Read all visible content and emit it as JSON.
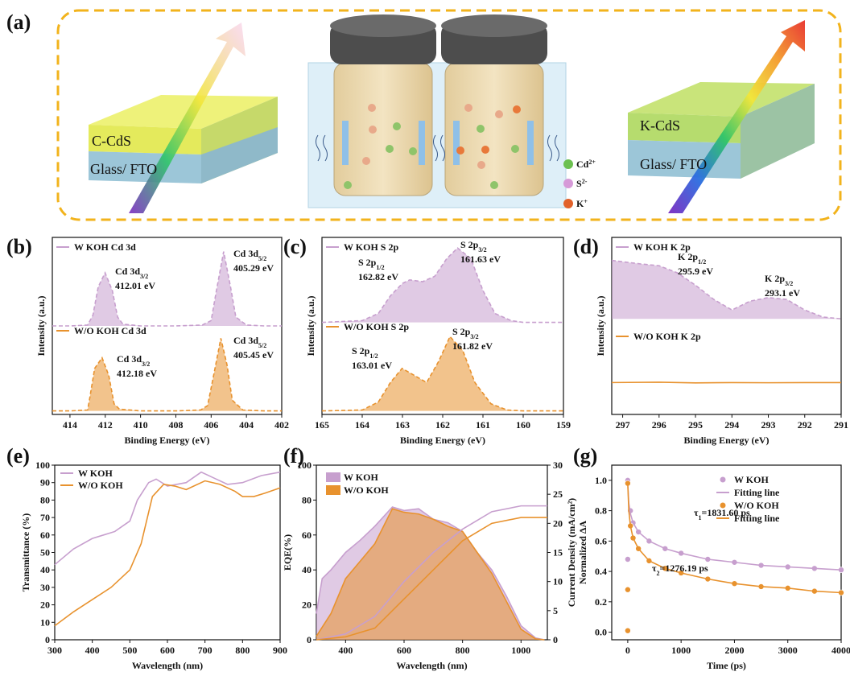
{
  "panel_a": {
    "label": "(a)",
    "left": {
      "top": "C-CdS",
      "bottom": "Glass/ FTO"
    },
    "right": {
      "top": "K-CdS",
      "bottom": "Glass/ FTO"
    },
    "ions": [
      {
        "symbol": "Cd",
        "charge": "2+"
      },
      {
        "symbol": "S",
        "charge": "2-"
      },
      {
        "symbol": "K",
        "charge": "+"
      }
    ]
  },
  "chart_data": [
    {
      "panel": "(b)",
      "type": "line",
      "xlabel": "Binding Energy (eV)",
      "ylabel": "Intensity (a.u.)",
      "xlim": [
        415,
        402
      ],
      "xticks": [
        414,
        412,
        410,
        408,
        406,
        404,
        402
      ],
      "ylim": [
        0,
        100
      ],
      "series": [
        {
          "name": "W KOH Cd 3d",
          "color": "#c79fce",
          "kind": "area",
          "x": [
            415,
            414,
            413,
            412.7,
            412.4,
            412.01,
            411.6,
            411.3,
            411,
            410,
            408,
            406.5,
            406,
            405.7,
            405.29,
            404.9,
            404.6,
            404,
            403,
            402
          ],
          "values": [
            50,
            50,
            50.5,
            56,
            72,
            80,
            70,
            55,
            51,
            50,
            50,
            50.5,
            53,
            70,
            92,
            72,
            55,
            50.5,
            50,
            50
          ]
        },
        {
          "name": "W/O KOH Cd 3d",
          "color": "#e8922e",
          "kind": "area",
          "x": [
            415,
            414,
            413,
            412.9,
            412.6,
            412.18,
            411.8,
            411.5,
            411.2,
            410,
            408,
            406.6,
            406.2,
            405.8,
            405.45,
            405.1,
            404.8,
            404.2,
            403,
            402
          ],
          "values": [
            2,
            2,
            2.5,
            8,
            26,
            32,
            22,
            6,
            3,
            2,
            2,
            2.5,
            5,
            25,
            43,
            28,
            8,
            2.5,
            2,
            2
          ]
        }
      ],
      "annotations": [
        {
          "text": "Cd 3d",
          "sub": "3/2",
          "line2": "412.01 eV"
        },
        {
          "text": "Cd 3d",
          "sub": "5/2",
          "line2": "405.29 eV"
        },
        {
          "text": "Cd 3d",
          "sub": "3/2",
          "line2": "412.18 eV"
        },
        {
          "text": "Cd 3d",
          "sub": "5/2",
          "line2": "405.45 eV"
        }
      ]
    },
    {
      "panel": "(c)",
      "type": "line",
      "xlabel": "Binding Energy (eV)",
      "ylabel": "Intensity (a.u.)",
      "xlim": [
        165,
        159
      ],
      "xticks": [
        165,
        164,
        163,
        162,
        161,
        160,
        159
      ],
      "ylim": [
        0,
        100
      ],
      "series": [
        {
          "name": "W KOH S 2p",
          "color": "#c79fce",
          "kind": "area",
          "x": [
            165,
            164,
            163.6,
            163.3,
            163,
            162.82,
            162.5,
            162.2,
            161.9,
            161.63,
            161.3,
            161,
            160.7,
            160.3,
            160,
            159
          ],
          "values": [
            52,
            53,
            57,
            67,
            74,
            76,
            75,
            78,
            88,
            94,
            88,
            70,
            57,
            53,
            52,
            52
          ]
        },
        {
          "name": "W/O KOH S 2p",
          "color": "#e8922e",
          "kind": "area",
          "x": [
            165,
            164,
            163.6,
            163.3,
            163.01,
            162.7,
            162.4,
            162.1,
            161.82,
            161.5,
            161.2,
            160.8,
            160.4,
            160,
            159
          ],
          "values": [
            2,
            2.5,
            7,
            18,
            26,
            22,
            18,
            30,
            44,
            36,
            18,
            6,
            2.5,
            2,
            2
          ]
        }
      ],
      "annotations": [
        {
          "text": "S 2p",
          "sub": "1/2",
          "line2": "162.82 eV"
        },
        {
          "text": "S 2p",
          "sub": "3/2",
          "line2": "161.63 eV"
        },
        {
          "text": "S 2p",
          "sub": "1/2",
          "line2": "163.01 eV"
        },
        {
          "text": "S 2p",
          "sub": "3/2",
          "line2": "161.82 eV"
        }
      ]
    },
    {
      "panel": "(d)",
      "type": "line",
      "xlabel": "Binding Energy (eV)",
      "ylabel": "Intensity (a.u.)",
      "xlim": [
        297.3,
        291
      ],
      "xticks": [
        297,
        296,
        295,
        294,
        293,
        292,
        291
      ],
      "ylim": [
        0,
        100
      ],
      "series": [
        {
          "name": "W KOH K 2p",
          "color": "#c79fce",
          "kind": "area",
          "x": [
            297.3,
            296.5,
            296,
            295.5,
            295,
            294.5,
            294,
            293.5,
            293,
            292.5,
            292,
            291.5,
            291
          ],
          "values": [
            87,
            85,
            84,
            80,
            73,
            65,
            59,
            64,
            66,
            65,
            59,
            55,
            54
          ]
        },
        {
          "name": "W/O KOH K 2p",
          "color": "#e8922e",
          "kind": "line",
          "x": [
            297.3,
            296,
            295,
            294,
            293,
            292,
            291
          ],
          "values": [
            18,
            18.2,
            17.8,
            18,
            17.9,
            18,
            18
          ]
        }
      ],
      "annotations": [
        {
          "text": "K 2p",
          "sub": "1/2",
          "line2": "295.9 eV"
        },
        {
          "text": "K 2p",
          "sub": "3/2",
          "line2": "293.1 eV"
        }
      ]
    },
    {
      "panel": "(e)",
      "type": "line",
      "xlabel": "Wavelength (nm)",
      "ylabel": "Transmittance (%)",
      "xlim": [
        300,
        900
      ],
      "xticks": [
        300,
        400,
        500,
        600,
        700,
        800,
        900
      ],
      "ylim": [
        0,
        100
      ],
      "yticks": [
        0,
        10,
        20,
        30,
        40,
        50,
        60,
        70,
        80,
        90,
        100
      ],
      "series": [
        {
          "name": "W KOH",
          "color": "#c79fce",
          "kind": "line",
          "x": [
            300,
            350,
            400,
            430,
            460,
            500,
            520,
            550,
            570,
            600,
            650,
            690,
            720,
            760,
            800,
            850,
            900
          ],
          "values": [
            43,
            52,
            58,
            60,
            62,
            68,
            80,
            90,
            92,
            88,
            90,
            96,
            93,
            89,
            90,
            94,
            96
          ]
        },
        {
          "name": "W/O KOH",
          "color": "#e8922e",
          "kind": "line",
          "x": [
            300,
            350,
            400,
            450,
            500,
            530,
            560,
            590,
            620,
            650,
            700,
            740,
            780,
            800,
            830,
            860,
            900
          ],
          "values": [
            8,
            16,
            23,
            30,
            40,
            55,
            82,
            89,
            88,
            86,
            91,
            89,
            85,
            82,
            82,
            84,
            87
          ]
        }
      ]
    },
    {
      "panel": "(f)",
      "type": "line",
      "xlabel": "Wavelength (nm)",
      "ylabel": "EQE(%)",
      "y2label": "Current Density (mA/cm²)",
      "xlim": [
        300,
        1090
      ],
      "xticks": [
        400,
        600,
        800,
        1000
      ],
      "ylim": [
        0,
        100
      ],
      "yticks": [
        0,
        20,
        40,
        60,
        80,
        100
      ],
      "y2lim": [
        0,
        30
      ],
      "y2ticks": [
        0,
        5,
        10,
        15,
        20,
        25,
        30
      ],
      "series": [
        {
          "name": "W KOH",
          "color": "#c79fce",
          "kind": "area",
          "x": [
            300,
            320,
            350,
            400,
            450,
            500,
            560,
            600,
            650,
            700,
            750,
            800,
            850,
            900,
            950,
            1000,
            1050,
            1080
          ],
          "values": [
            15,
            35,
            40,
            50,
            57,
            65,
            76,
            74,
            75,
            69,
            67,
            62,
            50,
            40,
            25,
            8,
            1,
            0
          ]
        },
        {
          "name": "W/O KOH",
          "color": "#e8922e",
          "kind": "area",
          "x": [
            300,
            350,
            400,
            450,
            500,
            560,
            600,
            650,
            700,
            750,
            800,
            850,
            900,
            950,
            1000,
            1050,
            1080
          ],
          "values": [
            2,
            15,
            35,
            45,
            55,
            75,
            73,
            72,
            69,
            65,
            62,
            50,
            38,
            22,
            6,
            0.5,
            0
          ]
        },
        {
          "name": "W KOH",
          "color": "#c79fce",
          "kind": "line",
          "axis": "y2",
          "x": [
            300,
            400,
            500,
            600,
            700,
            800,
            900,
            1000,
            1090
          ],
          "values": [
            0,
            1,
            4,
            10,
            15,
            19,
            22,
            23,
            23
          ]
        },
        {
          "name": "W/O KOH",
          "color": "#e8922e",
          "kind": "line",
          "axis": "y2",
          "x": [
            300,
            400,
            500,
            600,
            700,
            800,
            900,
            1000,
            1090
          ],
          "values": [
            0,
            0.5,
            2,
            7,
            12,
            17,
            20,
            21,
            21
          ]
        }
      ]
    },
    {
      "panel": "(g)",
      "type": "line",
      "xlabel": "Time (ps)",
      "ylabel": "Normalized ΔA",
      "xlim": [
        -300,
        4000
      ],
      "xticks": [
        0,
        1000,
        2000,
        3000,
        4000
      ],
      "ylim": [
        -0.05,
        1.1
      ],
      "yticks": [
        {
          "value": 0,
          "label": "0.0"
        },
        {
          "value": 0.2,
          "label": "0.2"
        },
        {
          "value": 0.4,
          "label": "0.4"
        },
        {
          "value": 0.6,
          "label": "0.6"
        },
        {
          "value": 0.8,
          "label": "0.8"
        },
        {
          "value": 1,
          "label": "1.0"
        }
      ],
      "series": [
        {
          "name": "W KOH",
          "color": "#c79fce",
          "kind": "scatter",
          "x": [
            0,
            0,
            50,
            100,
            200,
            400,
            700,
            1000,
            1500,
            2000,
            2500,
            3000,
            3500,
            4000
          ],
          "values": [
            1.0,
            0.48,
            0.8,
            0.72,
            0.66,
            0.6,
            0.55,
            0.52,
            0.48,
            0.46,
            0.44,
            0.43,
            0.42,
            0.41
          ]
        },
        {
          "name": "Fitting line",
          "color": "#c79fce",
          "kind": "line",
          "x": [
            0,
            20,
            50,
            100,
            200,
            400,
            700,
            1000,
            1500,
            2000,
            2500,
            3000,
            3500,
            4000
          ],
          "values": [
            0.98,
            0.85,
            0.78,
            0.72,
            0.66,
            0.6,
            0.55,
            0.52,
            0.48,
            0.46,
            0.44,
            0.43,
            0.42,
            0.41
          ]
        },
        {
          "name": "W/O KOH",
          "color": "#e8922e",
          "kind": "scatter",
          "x": [
            0,
            0,
            0,
            50,
            100,
            200,
            400,
            700,
            1000,
            1500,
            2000,
            2500,
            3000,
            3500,
            4000
          ],
          "values": [
            0.98,
            0.28,
            0.01,
            0.7,
            0.62,
            0.55,
            0.47,
            0.42,
            0.39,
            0.35,
            0.32,
            0.3,
            0.29,
            0.27,
            0.26
          ]
        },
        {
          "name": "Fitting line",
          "color": "#e8922e",
          "kind": "line",
          "x": [
            0,
            20,
            50,
            100,
            200,
            400,
            700,
            1000,
            1500,
            2000,
            2500,
            3000,
            3500,
            4000
          ],
          "values": [
            0.98,
            0.8,
            0.7,
            0.62,
            0.55,
            0.47,
            0.42,
            0.39,
            0.35,
            0.32,
            0.3,
            0.29,
            0.27,
            0.26
          ]
        }
      ],
      "annotations": [
        {
          "text": "τ",
          "sub": "1",
          "rest": "=1831.60 ps"
        },
        {
          "text": "τ",
          "sub": "2",
          "rest": "=1276.19 ps"
        }
      ]
    }
  ]
}
